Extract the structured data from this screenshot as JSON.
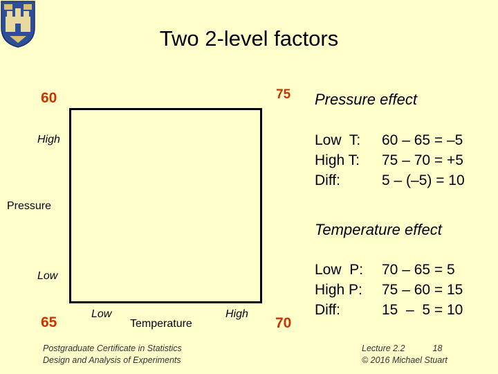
{
  "title": "Two 2-level factors",
  "design_values": {
    "top_left": "60",
    "top_right": "75",
    "bottom_left": "65",
    "bottom_right": "70"
  },
  "axes": {
    "pressure_high": "High",
    "pressure_low": "Low",
    "pressure_label": "Pressure",
    "temperature_low": "Low",
    "temperature_label": "Temperature",
    "temperature_high": "High"
  },
  "pressure_effect": {
    "heading": "Pressure effect",
    "rows": [
      {
        "label": "Low  T:",
        "expr": "60 – 65 = –5"
      },
      {
        "label": "High T:",
        "expr": "75 – 70 = +5"
      },
      {
        "label": "Diff:",
        "expr": "5 – (–5) = 10"
      }
    ]
  },
  "temperature_effect": {
    "heading": "Temperature effect",
    "rows": [
      {
        "label": "Low  P:",
        "expr": "70 – 65 = 5"
      },
      {
        "label": "High P:",
        "expr": "75 – 60 = 15"
      },
      {
        "label": "Diff:",
        "expr": "15  –  5 = 10"
      }
    ]
  },
  "footer": {
    "left_line1": "Postgraduate Certificate in Statistics",
    "left_line2": "Design and Analysis of Experiments",
    "lecture": "Lecture 2.2",
    "page": "18",
    "copyright": "© 2016 Michael Stuart"
  },
  "colors": {
    "background": "#FFFFCC",
    "accent": "#CC3300"
  }
}
